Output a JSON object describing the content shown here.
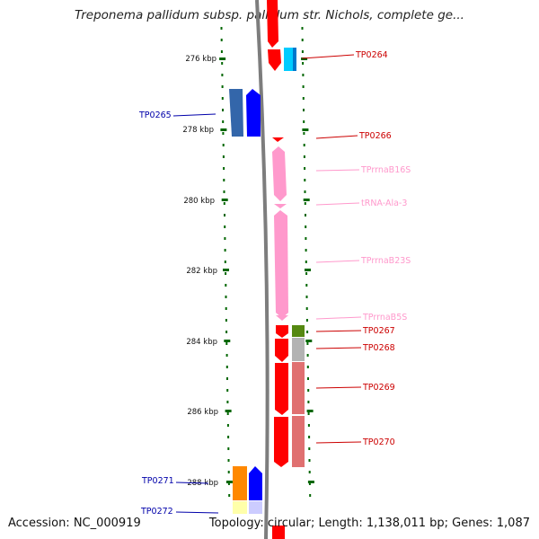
{
  "title": "Treponema pallidum subsp. pallidum str. Nichols, complete ge...",
  "accession": "Accession: NC_000919",
  "summary": "Topology: circular; Length: 1,138,011 bp; Genes: 1,087",
  "kbp_labels": [
    "276 kbp",
    "278 kbp",
    "280 kbp",
    "282 kbp",
    "284 kbp",
    "286 kbp",
    "288 kbp"
  ],
  "features": [
    {
      "name": "TP0264",
      "strand": "+",
      "color": "#ff0000"
    },
    {
      "name": "TP0265",
      "strand": "-",
      "color": "#0000cc"
    },
    {
      "name": "TP0266",
      "strand": "+",
      "color": "#ff0000"
    },
    {
      "name": "TPrrnaB16S",
      "strand": "+",
      "color": "#ff99cc"
    },
    {
      "name": "tRNA-Ala-3",
      "strand": "+",
      "color": "#ff99cc"
    },
    {
      "name": "TPrrnaB23S",
      "strand": "+",
      "color": "#ff99cc"
    },
    {
      "name": "TPrrnaB5S",
      "strand": "+",
      "color": "#ff99cc"
    },
    {
      "name": "TP0267",
      "strand": "+",
      "color": "#ff0000"
    },
    {
      "name": "TP0268",
      "strand": "+",
      "color": "#ff0000"
    },
    {
      "name": "TP0269",
      "strand": "+",
      "color": "#ff0000"
    },
    {
      "name": "TP0270",
      "strand": "+",
      "color": "#ff0000"
    },
    {
      "name": "TP0271",
      "strand": "-",
      "color": "#0000cc"
    },
    {
      "name": "TP0272",
      "strand": "-",
      "color": "#0000cc"
    }
  ],
  "colors": {
    "forward_gene": "#ff0000",
    "reverse_gene": "#0000ff",
    "rna": "#ff99cc",
    "backbone": "#808080",
    "tick": "#006600"
  }
}
